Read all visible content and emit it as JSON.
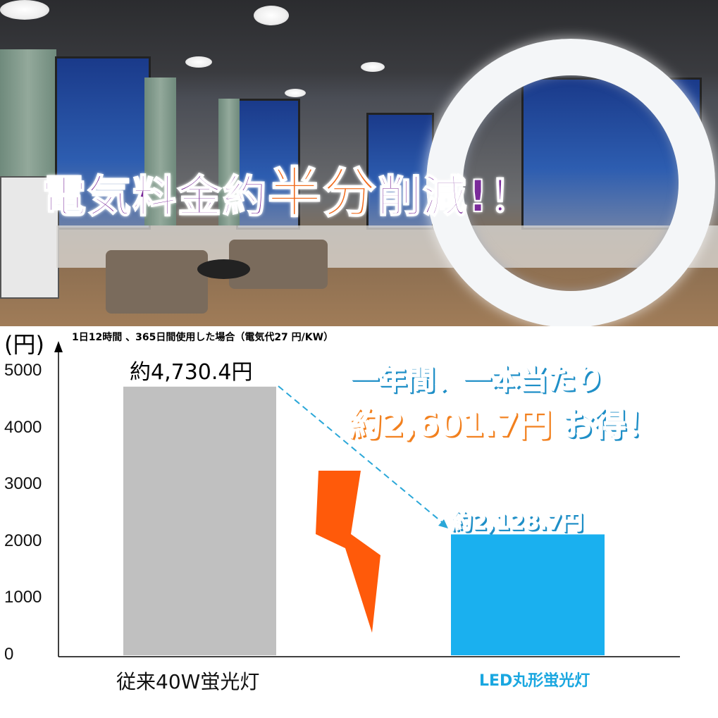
{
  "banner": {
    "prefix": "電気料金約",
    "highlight": "半分",
    "suffix": "削減!！"
  },
  "note": "1日12時間 、365日間使用した場合（電気代27 円/KW）",
  "savings": {
    "line1": "一年間、一本当たり",
    "amount": "約2,601.7円",
    "suffix": "お得！"
  },
  "colors": {
    "accent_orange": "#f2801e",
    "accent_blue": "#1aa7e0",
    "bar_conventional": "#c0c0c0",
    "bar_led": "#1ab0ef",
    "banner_purple": "#7a2a9a",
    "bolt": "#ff5a0a"
  },
  "chart_data": {
    "type": "bar",
    "ylabel": "(円)",
    "ylim": [
      0,
      5000
    ],
    "yticks": [
      "0",
      "1000",
      "2000",
      "3000",
      "4000",
      "5000"
    ],
    "categories": [
      "従来40W蛍光灯",
      "LED丸形蛍光灯"
    ],
    "values": [
      4730.4,
      2128.7
    ],
    "data_labels": [
      "約4,730.4円",
      "約2,128.7円"
    ],
    "grid": false
  }
}
